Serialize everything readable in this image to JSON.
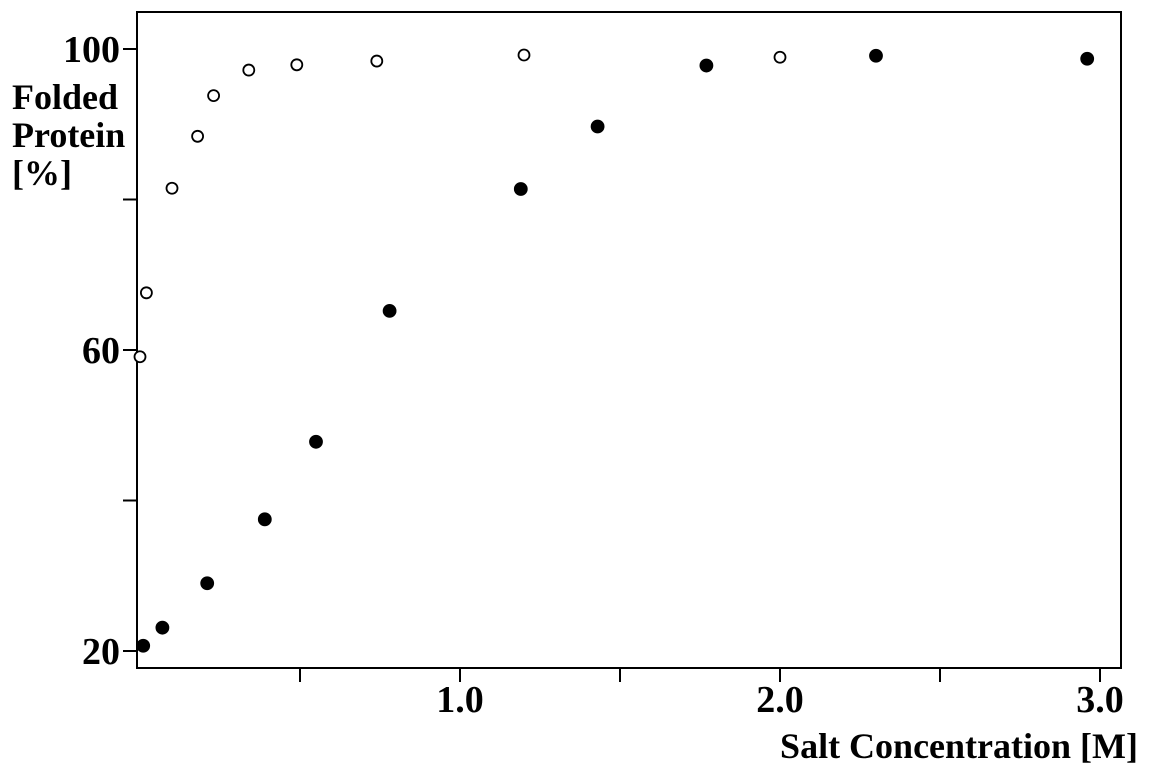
{
  "chart_data": {
    "type": "scatter",
    "xlabel": "Salt Concentration [M]",
    "ylabel_lines": [
      "Folded",
      "Protein",
      "[%]"
    ],
    "xlim": [
      -0.1,
      3.05
    ],
    "ylim": [
      16,
      106
    ],
    "x_ticks": [
      0.5,
      1.0,
      1.5,
      2.0,
      2.5,
      3.0
    ],
    "x_tick_labels": [
      {
        "value": 1.0,
        "label": "1.0"
      },
      {
        "value": 2.0,
        "label": "2.0"
      },
      {
        "value": 3.0,
        "label": "3.0"
      }
    ],
    "y_ticks": [
      20,
      40,
      60,
      80,
      100
    ],
    "y_tick_labels": [
      {
        "value": 20,
        "label": "20"
      },
      {
        "value": 60,
        "label": "60"
      },
      {
        "value": 100,
        "label": "100"
      }
    ],
    "grid": false,
    "series": [
      {
        "marker": "open-circle",
        "points": [
          {
            "x": 0.0,
            "y": 59.1
          },
          {
            "x": 0.02,
            "y": 67.6
          },
          {
            "x": 0.1,
            "y": 81.5
          },
          {
            "x": 0.18,
            "y": 88.4
          },
          {
            "x": 0.23,
            "y": 93.8
          },
          {
            "x": 0.34,
            "y": 97.2
          },
          {
            "x": 0.49,
            "y": 97.9
          },
          {
            "x": 0.74,
            "y": 98.4
          },
          {
            "x": 1.2,
            "y": 99.2
          },
          {
            "x": 2.0,
            "y": 98.9
          }
        ]
      },
      {
        "marker": "filled-circle",
        "points": [
          {
            "x": 0.01,
            "y": 20.7
          },
          {
            "x": 0.07,
            "y": 23.1
          },
          {
            "x": 0.21,
            "y": 29.0
          },
          {
            "x": 0.39,
            "y": 37.5
          },
          {
            "x": 0.55,
            "y": 47.8
          },
          {
            "x": 0.78,
            "y": 65.2
          },
          {
            "x": 1.19,
            "y": 81.4
          },
          {
            "x": 1.43,
            "y": 89.7
          },
          {
            "x": 1.77,
            "y": 97.8
          },
          {
            "x": 2.3,
            "y": 99.1
          },
          {
            "x": 2.96,
            "y": 98.7
          }
        ]
      }
    ]
  }
}
